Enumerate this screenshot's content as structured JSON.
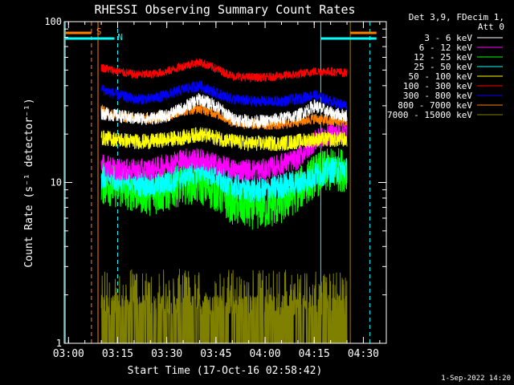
{
  "colors": {
    "background": "#000000",
    "axis": "#ffffff",
    "cyan_marker": "#00ffff",
    "orange_marker": "#ff8000",
    "olive_marker": "#a08000"
  },
  "chart_data": {
    "type": "line",
    "title": "RHESSI Observing Summary Count Rates",
    "xlabel": "Start Time (17-Oct-16 02:58:42)",
    "ylabel": "Count Rate (s⁻¹ detector⁻¹)",
    "y_scale": "log",
    "ylim": [
      1,
      100
    ],
    "xlim": [
      "02:58:42",
      "04:37:00"
    ],
    "x_ticks": [
      "03:00",
      "03:15",
      "03:30",
      "03:45",
      "04:00",
      "04:15",
      "04:30"
    ],
    "y_ticks": [
      "1",
      "10",
      "100"
    ],
    "grid": false,
    "legend_position": "top-right",
    "legend_header": [
      "Det 3,9, FDecim 1,",
      "Att 0"
    ],
    "footer_date": "1-Sep-2022 14:20",
    "flags": [
      {
        "label": "S",
        "color": "#ff8000",
        "start": "02:59:00",
        "end": "03:07:00"
      },
      {
        "label": "N",
        "color": "#00ffff",
        "start": "02:59:00",
        "end": "03:14:00"
      }
    ],
    "flags_right": [
      {
        "color": "#00ffff",
        "start": "04:17:00",
        "end": "04:34:00"
      },
      {
        "color": "#ff8000",
        "start": "04:26:00",
        "end": "04:34:00"
      }
    ],
    "vertical_lines": [
      {
        "time": "02:59:00",
        "color": "#00ffff",
        "style": "solid"
      },
      {
        "time": "03:07:00",
        "color": "#ff8000",
        "style": "dashed"
      },
      {
        "time": "03:09:00",
        "color": "#ff8000",
        "style": "solid"
      },
      {
        "time": "03:15:00",
        "color": "#00ffff",
        "style": "dashed"
      },
      {
        "time": "04:17:00",
        "color": "#00ffff",
        "style": "solid"
      },
      {
        "time": "04:26:00",
        "color": "#a08000",
        "style": "solid"
      },
      {
        "time": "04:32:00",
        "color": "#00ffff",
        "style": "dashed"
      }
    ],
    "x_times": [
      "03:10",
      "03:15",
      "03:20",
      "03:25",
      "03:30",
      "03:35",
      "03:40",
      "03:45",
      "03:50",
      "03:55",
      "04:00",
      "04:05",
      "04:10",
      "04:15",
      "04:20",
      "04:25"
    ],
    "series": [
      {
        "name": "3 - 6 keV",
        "color": "#ffffff",
        "noise": 0.06,
        "values": [
          27,
          26,
          25,
          25,
          26,
          29,
          33,
          30,
          25,
          24,
          24,
          25,
          26,
          30,
          27,
          26
        ]
      },
      {
        "name": "6 - 12 keV",
        "color": "#ff00ff",
        "noise": 0.1,
        "values": [
          13,
          12,
          12,
          12,
          13,
          14,
          14,
          13,
          12,
          12,
          12,
          13,
          14,
          18,
          20,
          21
        ]
      },
      {
        "name": "12 - 25 keV",
        "color": "#00ff00",
        "noise": 0.2,
        "values": [
          10,
          9.5,
          9.0,
          8.5,
          9.0,
          10,
          10,
          9.0,
          7.5,
          7.0,
          7.0,
          7.5,
          9.0,
          11,
          12,
          12
        ]
      },
      {
        "name": "25 - 50 keV",
        "color": "#00ffff",
        "noise": 0.12,
        "values": [
          11,
          10.5,
          10,
          9.5,
          10,
          11,
          12,
          11,
          9.5,
          9.0,
          9.0,
          9.5,
          10,
          11,
          12,
          12
        ]
      },
      {
        "name": "50 - 100 keV",
        "color": "#ffff00",
        "noise": 0.07,
        "values": [
          19,
          18.5,
          18,
          18,
          18.5,
          19,
          20,
          19,
          18,
          17.5,
          17.5,
          17.5,
          18,
          18.5,
          18.5,
          18.5
        ]
      },
      {
        "name": "100 - 300 keV",
        "color": "#ff0000",
        "noise": 0.04,
        "values": [
          52,
          49,
          47,
          47,
          49,
          53,
          56,
          51,
          46,
          45,
          45,
          46,
          47,
          49,
          49,
          48
        ]
      },
      {
        "name": "300 - 800 keV",
        "color": "#0000ff",
        "noise": 0.05,
        "values": [
          38,
          35,
          33,
          33,
          35,
          38,
          40,
          36,
          33,
          32,
          32,
          32,
          33,
          35,
          32,
          30
        ]
      },
      {
        "name": "800 - 7000 keV",
        "color": "#ff8000",
        "noise": 0.05,
        "values": [
          28,
          26,
          25,
          25,
          26,
          28,
          29,
          27,
          24,
          23,
          23,
          23,
          24,
          25,
          24,
          24
        ]
      },
      {
        "name": "7000 - 15000 keV",
        "color": "#808000",
        "noise": 0.0,
        "values": [
          1.2,
          1.4,
          1.5,
          1.5,
          1.6,
          1.8,
          2.0,
          1.6,
          1.5,
          1.5,
          1.5,
          1.5,
          1.5,
          1.5,
          1.5,
          1.5
        ]
      }
    ]
  }
}
